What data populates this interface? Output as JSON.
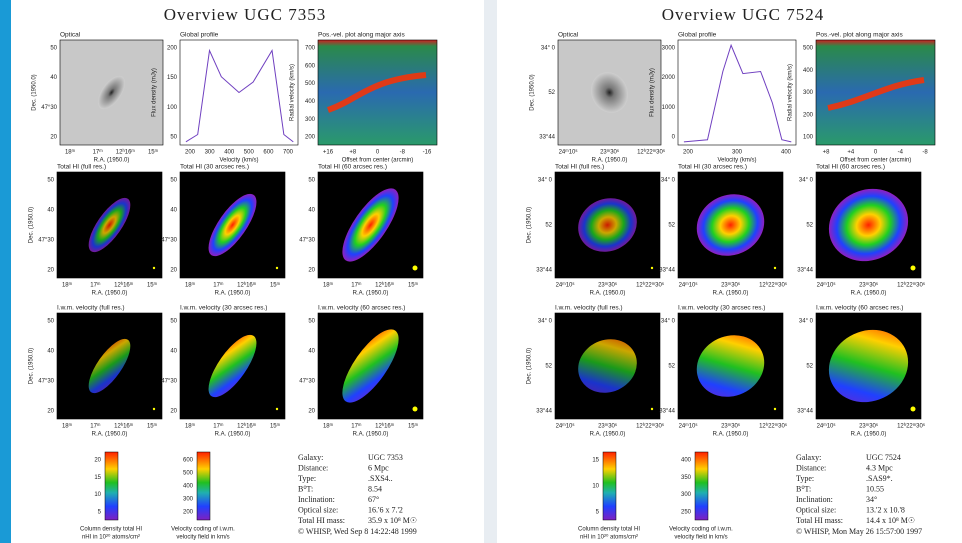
{
  "pages": [
    {
      "title": "Overview UGC 7353",
      "panels": [
        {
          "title": "Optical",
          "ylabel": "Dec. (1950.0)",
          "xlabel": "R.A. (1950.0)",
          "yticks": [
            "50",
            "40",
            "47°30",
            "20"
          ],
          "xticks": [
            "18ᵐ",
            "17ᵐ",
            "12ʰ16ᵐ",
            "15ᵐ"
          ]
        },
        {
          "title": "Global profile",
          "ylabel": "Flux density (mJy)",
          "xlabel": "Velocity (km/s)",
          "yticks": [
            "200",
            "150",
            "100",
            "50"
          ],
          "xticks": [
            "200",
            "300",
            "400",
            "500",
            "600",
            "700"
          ]
        },
        {
          "title": "Pos.-vel. plot along major axis",
          "ylabel": "Radial velocity (km/s)",
          "xlabel": "Offset from center (arcmin)",
          "yticks": [
            "700",
            "600",
            "500",
            "400",
            "300",
            "200"
          ],
          "xticks": [
            "+16",
            "+8",
            "0",
            "-8",
            "-16"
          ]
        },
        {
          "title": "Total HI (full res.)",
          "ylabel": "Dec. (1950.0)",
          "xlabel": "R.A. (1950.0)",
          "yticks": [
            "50",
            "40",
            "47°30",
            "20"
          ],
          "xticks": [
            "18ᵐ",
            "17ᵐ",
            "12ʰ16ᵐ",
            "15ᵐ"
          ]
        },
        {
          "title": "Total HI (30 arcsec res.)",
          "xlabel": "R.A. (1950.0)",
          "yticks": [
            "50",
            "40",
            "47°30",
            "20"
          ],
          "xticks": [
            "18ᵐ",
            "17ᵐ",
            "12ʰ16ᵐ",
            "15ᵐ"
          ]
        },
        {
          "title": "Total HI (60 arcsec res.)",
          "xlabel": "R.A. (1950.0)",
          "yticks": [
            "50",
            "40",
            "47°30",
            "20"
          ],
          "xticks": [
            "18ᵐ",
            "17ᵐ",
            "12ʰ16ᵐ",
            "15ᵐ"
          ]
        },
        {
          "title": "I.w.m. velocity (full res.)",
          "ylabel": "Dec. (1950.0)",
          "xlabel": "R.A. (1950.0)",
          "yticks": [
            "50",
            "40",
            "47°30",
            "20"
          ],
          "xticks": [
            "18ᵐ",
            "17ᵐ",
            "12ʰ16ᵐ",
            "15ᵐ"
          ]
        },
        {
          "title": "I.w.m. velocity (30 arcsec res.)",
          "xlabel": "R.A. (1950.0)",
          "yticks": [
            "50",
            "40",
            "47°30",
            "20"
          ],
          "xticks": [
            "18ᵐ",
            "17ᵐ",
            "12ʰ16ᵐ",
            "15ᵐ"
          ]
        },
        {
          "title": "I.w.m. velocity (60 arcsec res.)",
          "xlabel": "R.A. (1950.0)",
          "yticks": [
            "50",
            "40",
            "47°30",
            "20"
          ],
          "xticks": [
            "18ᵐ",
            "17ᵐ",
            "12ʰ16ᵐ",
            "15ᵐ"
          ]
        }
      ],
      "colorbars": [
        {
          "ticks": [
            "20",
            "15",
            "10",
            "5"
          ],
          "caption": [
            "Column density total HI",
            "nHI in 10²⁰ atoms/cm²"
          ]
        },
        {
          "ticks": [
            "600",
            "500",
            "400",
            "300",
            "200"
          ],
          "caption": [
            "Velocity coding of i.w.m.",
            "velocity field in km/s"
          ]
        }
      ],
      "info": [
        [
          "Galaxy:",
          "UGC 7353"
        ],
        [
          "Distance:",
          "6 Mpc"
        ],
        [
          "Type:",
          ".SXS4.."
        ],
        [
          "B⁰T:",
          "8.54"
        ],
        [
          "Inclination:",
          "67°"
        ],
        [
          "Optical size:",
          "16.'6 x 7.'2"
        ],
        [
          "Total HI mass:",
          "35.9 x 10⁸ M☉"
        ]
      ],
      "footer": "© WHISP, Wed Sep  8 14:22:48 1999"
    },
    {
      "title": "Overview UGC 7524",
      "panels": [
        {
          "title": "Optical",
          "ylabel": "Dec. (1950.0)",
          "xlabel": "R.A. (1950.0)",
          "yticks": [
            "34° 0",
            "52",
            "33°44"
          ],
          "xticks": [
            "24ᵐ10ˢ",
            "23ᵐ30ˢ",
            "12ʰ22ᵐ30ˢ"
          ]
        },
        {
          "title": "Global profile",
          "ylabel": "Flux density (mJy)",
          "xlabel": "Velocity (km/s)",
          "yticks": [
            "3000",
            "2000",
            "1000",
            "0"
          ],
          "xticks": [
            "200",
            "300",
            "400"
          ]
        },
        {
          "title": "Pos.-vel. plot along major axis",
          "ylabel": "Radial velocity (km/s)",
          "xlabel": "Offset from center (arcmin)",
          "yticks": [
            "500",
            "400",
            "300",
            "200",
            "100"
          ],
          "xticks": [
            "+8",
            "+4",
            "0",
            "-4",
            "-8"
          ]
        },
        {
          "title": "Total HI (full res.)",
          "ylabel": "Dec. (1950.0)",
          "xlabel": "R.A. (1950.0)",
          "yticks": [
            "34° 0",
            "52",
            "33°44"
          ],
          "xticks": [
            "24ᵐ10ˢ",
            "23ᵐ30ˢ",
            "12ʰ22ᵐ30ˢ"
          ]
        },
        {
          "title": "Total HI (30 arcsec res.)",
          "xlabel": "R.A. (1950.0)",
          "yticks": [
            "34° 0",
            "52",
            "33°44"
          ],
          "xticks": [
            "24ᵐ10ˢ",
            "23ᵐ30ˢ",
            "12ʰ22ᵐ30ˢ"
          ]
        },
        {
          "title": "Total HI (60 arcsec res.)",
          "xlabel": "R.A. (1950.0)",
          "yticks": [
            "34° 0",
            "52",
            "33°44"
          ],
          "xticks": [
            "24ᵐ10ˢ",
            "23ᵐ30ˢ",
            "12ʰ22ᵐ30ˢ"
          ]
        },
        {
          "title": "I.w.m. velocity (full res.)",
          "ylabel": "Dec. (1950.0)",
          "xlabel": "R.A. (1950.0)",
          "yticks": [
            "34° 0",
            "52",
            "33°44"
          ],
          "xticks": [
            "24ᵐ10ˢ",
            "23ᵐ30ˢ",
            "12ʰ22ᵐ30ˢ"
          ]
        },
        {
          "title": "I.w.m. velocity (30 arcsec res.)",
          "xlabel": "R.A. (1950.0)",
          "yticks": [
            "34° 0",
            "52",
            "33°44"
          ],
          "xticks": [
            "24ᵐ10ˢ",
            "23ᵐ30ˢ",
            "12ʰ22ᵐ30ˢ"
          ]
        },
        {
          "title": "I.w.m. velocity (60 arcsec res.)",
          "xlabel": "R.A. (1950.0)",
          "yticks": [
            "34° 0",
            "52",
            "33°44"
          ],
          "xticks": [
            "24ᵐ10ˢ",
            "23ᵐ30ˢ",
            "12ʰ22ᵐ30ˢ"
          ]
        }
      ],
      "colorbars": [
        {
          "ticks": [
            "15",
            "10",
            "5"
          ],
          "caption": [
            "Column density total HI",
            "nHI in 10²⁰ atoms/cm²"
          ]
        },
        {
          "ticks": [
            "400",
            "350",
            "300",
            "250"
          ],
          "caption": [
            "Velocity coding of i.w.m.",
            "velocity field in km/s"
          ]
        }
      ],
      "info": [
        [
          "Galaxy:",
          "UGC 7524"
        ],
        [
          "Distance:",
          "4.3 Mpc"
        ],
        [
          "Type:",
          ".SAS9*."
        ],
        [
          "B⁰T:",
          "10.55"
        ],
        [
          "Inclination:",
          "34°"
        ],
        [
          "Optical size:",
          "13.'2 x 10.'8"
        ],
        [
          "Total HI mass:",
          "14.4 x 10⁸ M☉"
        ]
      ],
      "footer": "© WHISP, Mon May 26 15:57:00 1997"
    }
  ]
}
